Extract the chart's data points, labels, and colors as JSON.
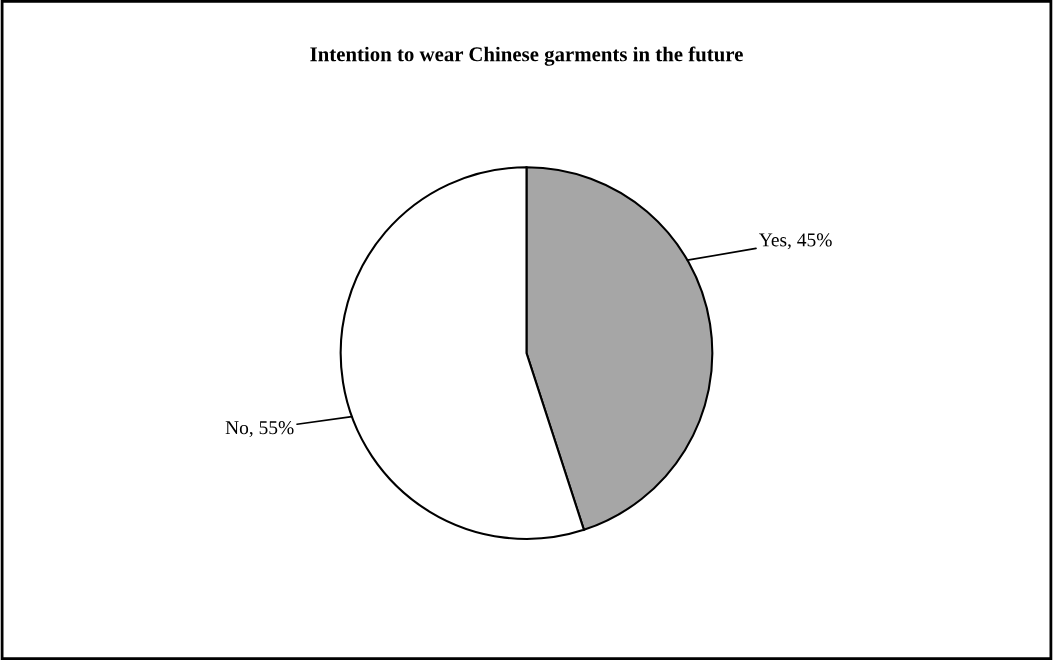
{
  "chart_data": {
    "type": "pie",
    "title": "Intention to wear Chinese garments in the future",
    "categories": [
      "Yes, 45%",
      "No, 55%"
    ],
    "values": [
      45,
      55
    ],
    "colors": [
      "#a6a6a6",
      "#ffffff"
    ]
  }
}
